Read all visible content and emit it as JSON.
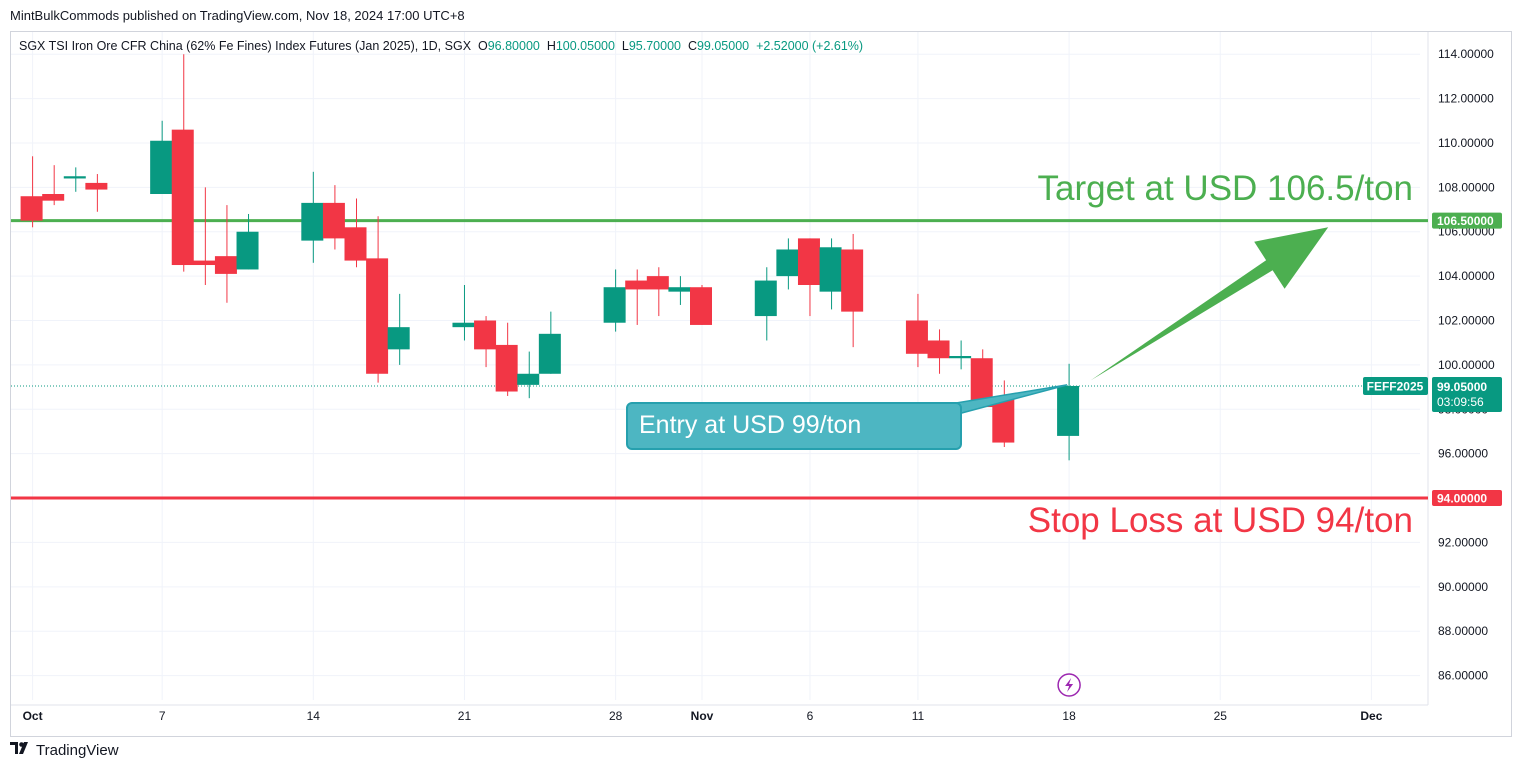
{
  "publish_line": "MintBulkCommods published on TradingView.com, Nov 18, 2024 17:00 UTC+8",
  "legend": {
    "symbol": "SGX TSI Iron Ore CFR China (62% Fe Fines) Index Futures (Jan 2025), 1D, SGX",
    "o_label": "O",
    "o_value": "96.80000",
    "h_label": "H",
    "h_value": "100.05000",
    "l_label": "L",
    "l_value": "95.70000",
    "c_label": "C",
    "c_value": "99.05000",
    "change": "+2.52000 (+2.61%)"
  },
  "colors": {
    "up": "#089981",
    "down": "#f23645",
    "target": "#4caf50",
    "stop": "#f23645",
    "entry_box": "#4db6c2"
  },
  "annotations": {
    "target": "Target at USD 106.5/ton",
    "stop": "Stop Loss at USD 94/ton",
    "entry": "Entry at USD 99/ton"
  },
  "price_tags": {
    "target": "106.50000",
    "stop": "94.00000",
    "ticker": "FEFF2025",
    "last": "99.05000",
    "countdown": "03:09:56"
  },
  "footer": {
    "brand": "TradingView",
    "icon": "tradingview-logo-icon"
  },
  "chart_data": {
    "type": "candlestick",
    "ylim": [
      84.9,
      115.0
    ],
    "y_ticks": [
      86,
      88,
      90,
      92,
      94,
      96,
      98,
      100,
      102,
      104,
      106,
      108,
      110,
      112,
      114
    ],
    "y_tick_labels": [
      "86.00000",
      "88.00000",
      "90.00000",
      "92.00000",
      "94.00000",
      "96.00000",
      "98.00000",
      "100.00000",
      "102.00000",
      "104.00000",
      "106.00000",
      "108.00000",
      "110.00000",
      "112.00000",
      "114.00000"
    ],
    "x_ticks": [
      {
        "label": "Oct",
        "date": "2024-10-01"
      },
      {
        "label": "7",
        "date": "2024-10-07"
      },
      {
        "label": "14",
        "date": "2024-10-14"
      },
      {
        "label": "21",
        "date": "2024-10-21"
      },
      {
        "label": "28",
        "date": "2024-10-28"
      },
      {
        "label": "Nov",
        "date": "2024-11-01"
      },
      {
        "label": "6",
        "date": "2024-11-06"
      },
      {
        "label": "11",
        "date": "2024-11-11"
      },
      {
        "label": "18",
        "date": "2024-11-18"
      },
      {
        "label": "25",
        "date": "2024-11-25"
      },
      {
        "label": "Dec",
        "date": "2024-12-02"
      }
    ],
    "x_range": [
      "2024-09-30",
      "2024-12-03"
    ],
    "candles": [
      {
        "date": "2024-10-01",
        "o": 107.6,
        "h": 109.4,
        "l": 106.2,
        "c": 106.5
      },
      {
        "date": "2024-10-02",
        "o": 107.7,
        "h": 109.0,
        "l": 107.2,
        "c": 107.4
      },
      {
        "date": "2024-10-03",
        "o": 108.4,
        "h": 108.9,
        "l": 107.8,
        "c": 108.5
      },
      {
        "date": "2024-10-04",
        "o": 108.2,
        "h": 108.6,
        "l": 106.9,
        "c": 107.9
      },
      {
        "date": "2024-10-07",
        "o": 107.7,
        "h": 111.0,
        "l": 107.7,
        "c": 110.1
      },
      {
        "date": "2024-10-08",
        "o": 110.6,
        "h": 114.0,
        "l": 104.2,
        "c": 104.5
      },
      {
        "date": "2024-10-09",
        "o": 104.7,
        "h": 108.0,
        "l": 103.6,
        "c": 104.5
      },
      {
        "date": "2024-10-10",
        "o": 104.9,
        "h": 107.2,
        "l": 102.8,
        "c": 104.1
      },
      {
        "date": "2024-10-11",
        "o": 104.3,
        "h": 106.8,
        "l": 104.3,
        "c": 106.0
      },
      {
        "date": "2024-10-14",
        "o": 105.6,
        "h": 108.7,
        "l": 104.6,
        "c": 107.3
      },
      {
        "date": "2024-10-15",
        "o": 107.3,
        "h": 108.1,
        "l": 105.2,
        "c": 105.7
      },
      {
        "date": "2024-10-16",
        "o": 106.2,
        "h": 107.5,
        "l": 104.4,
        "c": 104.7
      },
      {
        "date": "2024-10-17",
        "o": 104.8,
        "h": 106.7,
        "l": 99.2,
        "c": 99.6
      },
      {
        "date": "2024-10-18",
        "o": 100.7,
        "h": 103.2,
        "l": 100.0,
        "c": 101.7
      },
      {
        "date": "2024-10-21",
        "o": 101.7,
        "h": 103.6,
        "l": 101.1,
        "c": 101.9
      },
      {
        "date": "2024-10-22",
        "o": 102.0,
        "h": 102.2,
        "l": 99.9,
        "c": 100.7
      },
      {
        "date": "2024-10-23",
        "o": 100.9,
        "h": 101.9,
        "l": 98.6,
        "c": 98.8
      },
      {
        "date": "2024-10-24",
        "o": 99.1,
        "h": 100.6,
        "l": 98.5,
        "c": 99.6
      },
      {
        "date": "2024-10-25",
        "o": 99.6,
        "h": 102.4,
        "l": 99.6,
        "c": 101.4
      },
      {
        "date": "2024-10-28",
        "o": 101.9,
        "h": 104.3,
        "l": 101.5,
        "c": 103.5
      },
      {
        "date": "2024-10-29",
        "o": 103.8,
        "h": 104.3,
        "l": 101.8,
        "c": 103.4
      },
      {
        "date": "2024-10-30",
        "o": 104.0,
        "h": 104.4,
        "l": 102.2,
        "c": 103.4
      },
      {
        "date": "2024-10-31",
        "o": 103.3,
        "h": 104.0,
        "l": 102.7,
        "c": 103.5
      },
      {
        "date": "2024-11-01",
        "o": 103.5,
        "h": 103.6,
        "l": 101.8,
        "c": 101.8
      },
      {
        "date": "2024-11-04",
        "o": 102.2,
        "h": 104.4,
        "l": 101.1,
        "c": 103.8
      },
      {
        "date": "2024-11-05",
        "o": 104.0,
        "h": 105.7,
        "l": 103.4,
        "c": 105.2
      },
      {
        "date": "2024-11-06",
        "o": 105.7,
        "h": 105.7,
        "l": 102.2,
        "c": 103.6
      },
      {
        "date": "2024-11-07",
        "o": 103.3,
        "h": 105.7,
        "l": 102.5,
        "c": 105.3
      },
      {
        "date": "2024-11-08",
        "o": 105.2,
        "h": 105.9,
        "l": 100.8,
        "c": 102.4
      },
      {
        "date": "2024-11-11",
        "o": 102.0,
        "h": 103.2,
        "l": 99.9,
        "c": 100.5
      },
      {
        "date": "2024-11-12",
        "o": 101.1,
        "h": 101.6,
        "l": 99.6,
        "c": 100.3
      },
      {
        "date": "2024-11-13",
        "o": 100.3,
        "h": 101.1,
        "l": 99.8,
        "c": 100.4
      },
      {
        "date": "2024-11-14",
        "o": 100.3,
        "h": 100.7,
        "l": 98.1,
        "c": 98.1
      },
      {
        "date": "2024-11-15",
        "o": 98.5,
        "h": 99.3,
        "l": 96.3,
        "c": 96.5
      },
      {
        "date": "2024-11-18",
        "o": 96.8,
        "h": 100.05,
        "l": 95.7,
        "c": 99.05
      }
    ],
    "horizontal_lines": [
      {
        "name": "target",
        "value": 106.5
      },
      {
        "name": "stop",
        "value": 94.0
      },
      {
        "name": "last",
        "value": 99.05
      }
    ],
    "arrow": {
      "from": {
        "date": "2024-11-19",
        "value": 99.3
      },
      "to": {
        "date": "2024-11-30",
        "value": 106.2
      }
    }
  }
}
